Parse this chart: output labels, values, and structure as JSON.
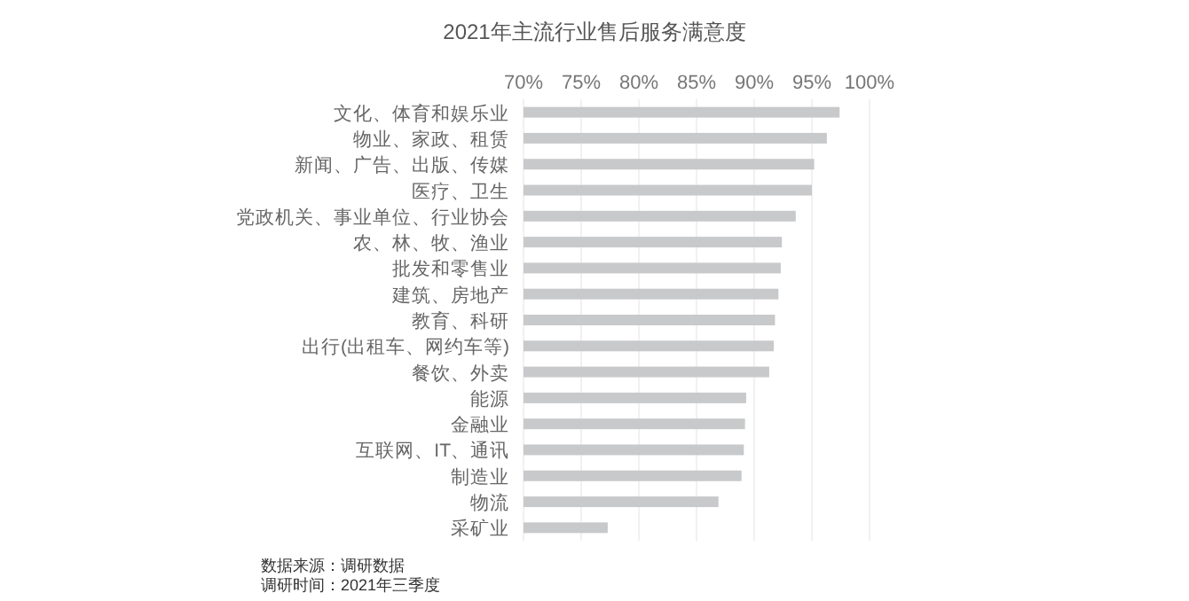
{
  "chart_data": {
    "type": "bar",
    "orientation": "horizontal",
    "title": "2021年主流行业售后服务满意度",
    "categories": [
      "文化、体育和娱乐业",
      "物业、家政、租赁",
      "新闻、广告、出版、传媒",
      "医疗、卫生",
      "党政机关、事业单位、行业协会",
      "农、林、牧、渔业",
      "批发和零售业",
      "建筑、房地产",
      "教育、科研",
      "出行(出租车、网约车等)",
      "餐饮、外卖",
      "能源",
      "金融业",
      "互联网、IT、通讯",
      "制造业",
      "物流",
      "采矿业"
    ],
    "values": [
      97.4,
      96.3,
      95.2,
      95.0,
      93.6,
      92.4,
      92.3,
      92.1,
      91.8,
      91.7,
      91.3,
      89.3,
      89.2,
      89.1,
      88.9,
      86.9,
      77.3
    ],
    "color": "#c8c9cb",
    "xlim": [
      70,
      100
    ],
    "xticks": [
      {
        "value": 70,
        "label": "70%"
      },
      {
        "value": 75,
        "label": "75%"
      },
      {
        "value": 80,
        "label": "80%"
      },
      {
        "value": 85,
        "label": "85%"
      },
      {
        "value": 90,
        "label": "90%"
      },
      {
        "value": 95,
        "label": "95%"
      },
      {
        "value": 100,
        "label": "100%"
      }
    ],
    "grid": "x",
    "annotations": [
      "数据来源：调研数据",
      "调研时间：2021年三季度"
    ]
  }
}
